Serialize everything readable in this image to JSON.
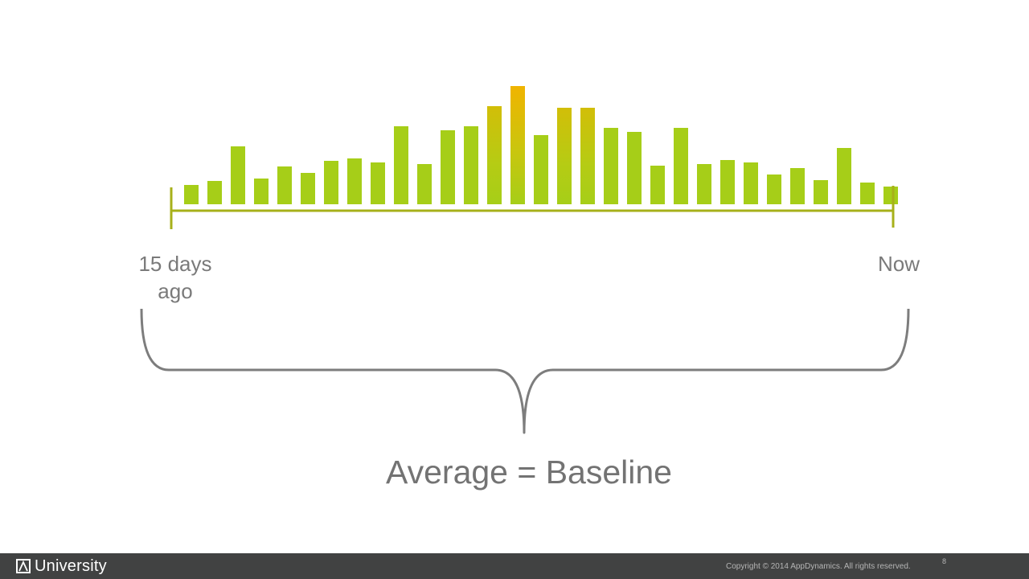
{
  "chart_data": {
    "type": "bar",
    "x_start_label": "15 days\nago",
    "x_end_label": "Now",
    "values": [
      24,
      29,
      72,
      32,
      47,
      39,
      54,
      57,
      52,
      97,
      50,
      92,
      97,
      122,
      147,
      86,
      120,
      120,
      95,
      90,
      48,
      95,
      50,
      55,
      52,
      37,
      45,
      30,
      70,
      27,
      22
    ],
    "ylim": [
      0,
      150
    ],
    "colors": {
      "low": "#a6ce18",
      "high": "#f0b400",
      "axis": "#a7b01a"
    }
  },
  "caption": "Average = Baseline",
  "footer": {
    "logo_text": "University",
    "logo_icon": "appdynamics-a-icon",
    "copyright": "Copyright © 2014 AppDynamics. All rights reserved.",
    "page_number": "8"
  }
}
